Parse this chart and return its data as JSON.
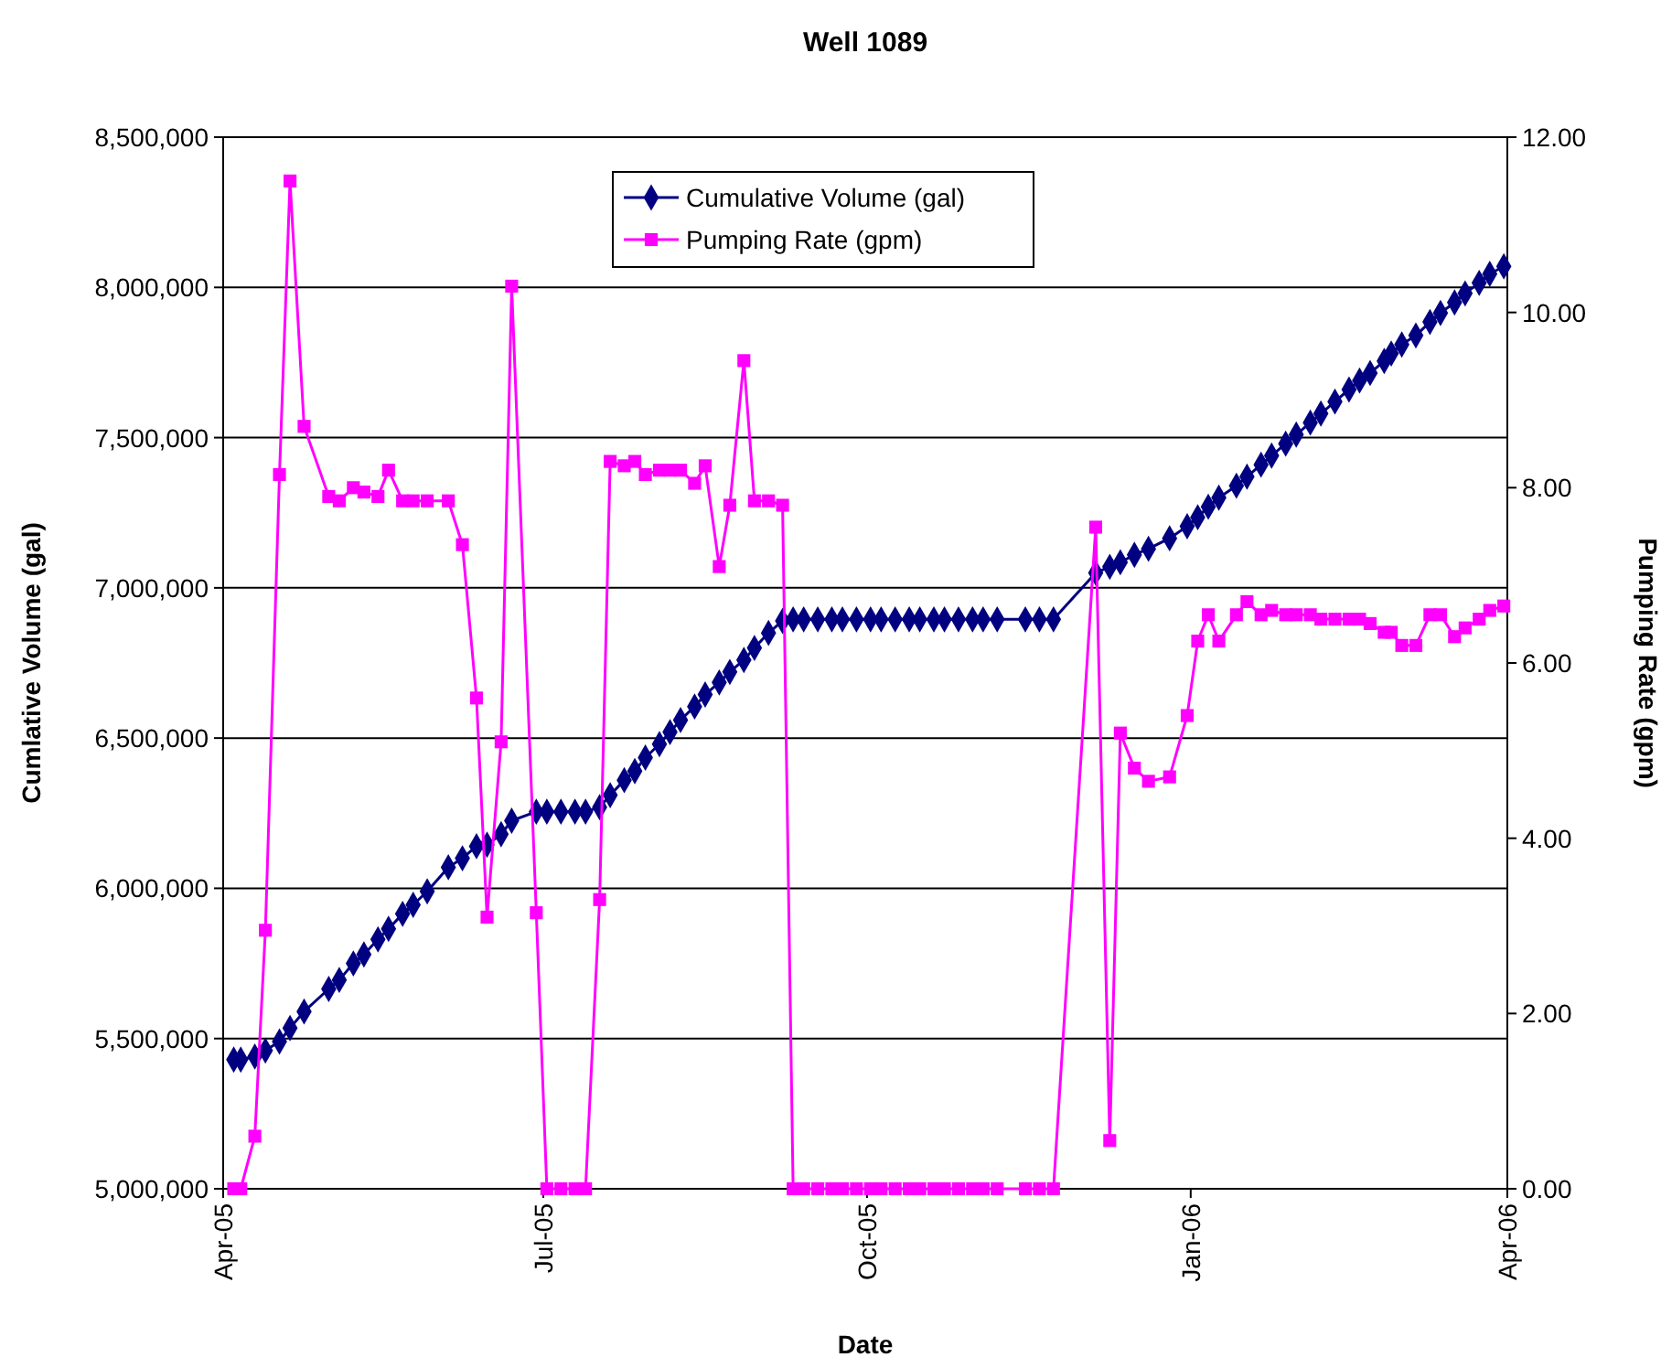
{
  "chart_data": {
    "type": "line",
    "title": "Well 1089",
    "xlabel": "Date",
    "ylabel": "Cumlative Volume (gal)",
    "y2label": "Pumping Rate (gpm)",
    "x": [
      "2005-04-04",
      "2005-04-06",
      "2005-04-10",
      "2005-04-13",
      "2005-04-17",
      "2005-04-20",
      "2005-04-24",
      "2005-05-01",
      "2005-05-04",
      "2005-05-08",
      "2005-05-11",
      "2005-05-15",
      "2005-05-18",
      "2005-05-22",
      "2005-05-25",
      "2005-05-29",
      "2005-06-04",
      "2005-06-08",
      "2005-06-12",
      "2005-06-15",
      "2005-06-19",
      "2005-06-22",
      "2005-06-29",
      "2005-07-02",
      "2005-07-06",
      "2005-07-10",
      "2005-07-13",
      "2005-07-17",
      "2005-07-20",
      "2005-07-24",
      "2005-07-27",
      "2005-07-30",
      "2005-08-03",
      "2005-08-06",
      "2005-08-09",
      "2005-08-13",
      "2005-08-16",
      "2005-08-20",
      "2005-08-23",
      "2005-08-27",
      "2005-08-30",
      "2005-09-03",
      "2005-09-07",
      "2005-09-10",
      "2005-09-13",
      "2005-09-17",
      "2005-09-21",
      "2005-09-24",
      "2005-09-28",
      "2005-10-02",
      "2005-10-05",
      "2005-10-09",
      "2005-10-13",
      "2005-10-16",
      "2005-10-20",
      "2005-10-23",
      "2005-10-27",
      "2005-10-31",
      "2005-11-03",
      "2005-11-07",
      "2005-11-15",
      "2005-11-19",
      "2005-11-23",
      "2005-12-05",
      "2005-12-09",
      "2005-12-12",
      "2005-12-16",
      "2005-12-20",
      "2005-12-26",
      "2005-12-31",
      "2006-01-03",
      "2006-01-06",
      "2006-01-09",
      "2006-01-14",
      "2006-01-17",
      "2006-01-21",
      "2006-01-24",
      "2006-01-28",
      "2006-01-31",
      "2006-02-04",
      "2006-02-07",
      "2006-02-11",
      "2006-02-15",
      "2006-02-18",
      "2006-02-21",
      "2006-02-25",
      "2006-02-27",
      "2006-03-02",
      "2006-03-06",
      "2006-03-10",
      "2006-03-13",
      "2006-03-17",
      "2006-03-20",
      "2006-03-24",
      "2006-03-27",
      "2006-03-31"
    ],
    "series": [
      {
        "name": "Cumulative Volume (gal)",
        "color": "#000080",
        "marker": "diamond",
        "values": [
          5430000,
          5430000,
          5440000,
          5460000,
          5490000,
          5535000,
          5590000,
          5665000,
          5695000,
          5750000,
          5780000,
          5830000,
          5865000,
          5915000,
          5945000,
          5990000,
          6070000,
          6100000,
          6140000,
          6145000,
          6180000,
          6225000,
          6255000,
          6255000,
          6255000,
          6255000,
          6255000,
          6270000,
          6310000,
          6360000,
          6390000,
          6435000,
          6480000,
          6520000,
          6560000,
          6605000,
          6645000,
          6685000,
          6720000,
          6760000,
          6800000,
          6850000,
          6890000,
          6895000,
          6895000,
          6895000,
          6895000,
          6895000,
          6895000,
          6895000,
          6895000,
          6895000,
          6895000,
          6895000,
          6895000,
          6895000,
          6895000,
          6895000,
          6895000,
          6895000,
          6895000,
          6895000,
          6895000,
          7050000,
          7070000,
          7085000,
          7110000,
          7130000,
          7165000,
          7205000,
          7235000,
          7270000,
          7300000,
          7340000,
          7370000,
          7410000,
          7440000,
          7480000,
          7510000,
          7550000,
          7580000,
          7620000,
          7660000,
          7690000,
          7715000,
          7755000,
          7780000,
          7810000,
          7840000,
          7885000,
          7915000,
          7950000,
          7980000,
          8015000,
          8045000,
          8070000
        ]
      },
      {
        "name": "Pumping Rate (gpm)",
        "color": "#ff00ff",
        "marker": "square",
        "axis": "y2",
        "values": [
          0,
          0,
          0.6,
          2.95,
          8.15,
          11.5,
          8.7,
          7.9,
          7.85,
          8.0,
          7.95,
          7.9,
          8.2,
          7.85,
          7.85,
          7.85,
          7.85,
          7.35,
          5.6,
          3.1,
          5.1,
          10.3,
          3.15,
          0,
          0,
          0,
          0,
          3.3,
          8.3,
          8.25,
          8.3,
          8.15,
          8.2,
          8.2,
          8.2,
          8.05,
          8.25,
          7.1,
          7.8,
          9.45,
          7.85,
          7.85,
          7.8,
          0,
          0,
          0,
          0,
          0,
          0,
          0,
          0,
          0,
          0,
          0,
          0,
          0,
          0,
          0,
          0,
          0,
          0,
          0,
          0,
          7.55,
          0.55,
          5.2,
          4.8,
          4.65,
          4.7,
          5.4,
          6.25,
          6.55,
          6.25,
          6.55,
          6.7,
          6.55,
          6.6,
          6.55,
          6.55,
          6.55,
          6.5,
          6.5,
          6.5,
          6.5,
          6.45,
          6.35,
          6.35,
          6.2,
          6.2,
          6.55,
          6.55,
          6.3,
          6.4,
          6.5,
          6.6,
          6.65
        ]
      }
    ],
    "xlim": [
      "2005-04-01",
      "2006-04-01"
    ],
    "xticks": [
      {
        "value": "2005-04-01",
        "label": "Apr-05"
      },
      {
        "value": "2005-07-01",
        "label": "Jul-05"
      },
      {
        "value": "2005-10-01",
        "label": "Oct-05"
      },
      {
        "value": "2006-01-01",
        "label": "Jan-06"
      },
      {
        "value": "2006-04-01",
        "label": "Apr-06"
      }
    ],
    "ylim": [
      5000000,
      8500000
    ],
    "yticks": [
      {
        "value": 5000000,
        "label": "5,000,000"
      },
      {
        "value": 5500000,
        "label": "5,500,000"
      },
      {
        "value": 6000000,
        "label": "6,000,000"
      },
      {
        "value": 6500000,
        "label": "6,500,000"
      },
      {
        "value": 7000000,
        "label": "7,000,000"
      },
      {
        "value": 7500000,
        "label": "7,500,000"
      },
      {
        "value": 8000000,
        "label": "8,000,000"
      },
      {
        "value": 8500000,
        "label": "8,500,000"
      }
    ],
    "y2lim": [
      0,
      12
    ],
    "y2ticks": [
      {
        "value": 0,
        "label": "0.00"
      },
      {
        "value": 2,
        "label": "2.00"
      },
      {
        "value": 4,
        "label": "4.00"
      },
      {
        "value": 6,
        "label": "6.00"
      },
      {
        "value": 8,
        "label": "8.00"
      },
      {
        "value": 10,
        "label": "10.00"
      },
      {
        "value": 12,
        "label": "12.00"
      }
    ],
    "grid": "y",
    "legend": "top",
    "line_style": "solid"
  }
}
